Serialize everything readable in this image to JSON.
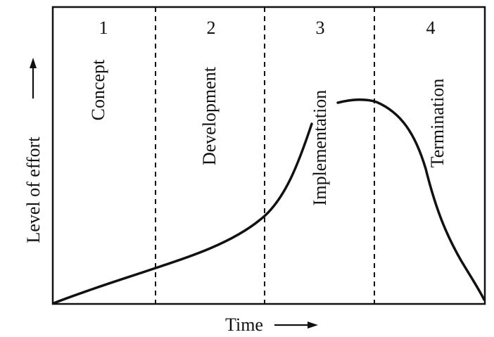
{
  "phases": [
    {
      "number": "1",
      "name": "Concept"
    },
    {
      "number": "2",
      "name": "Development"
    },
    {
      "number": "3",
      "name": "Implementation"
    },
    {
      "number": "4",
      "name": "Termination"
    }
  ],
  "y_axis_label": "Level of effort",
  "x_axis_label": "Time"
}
